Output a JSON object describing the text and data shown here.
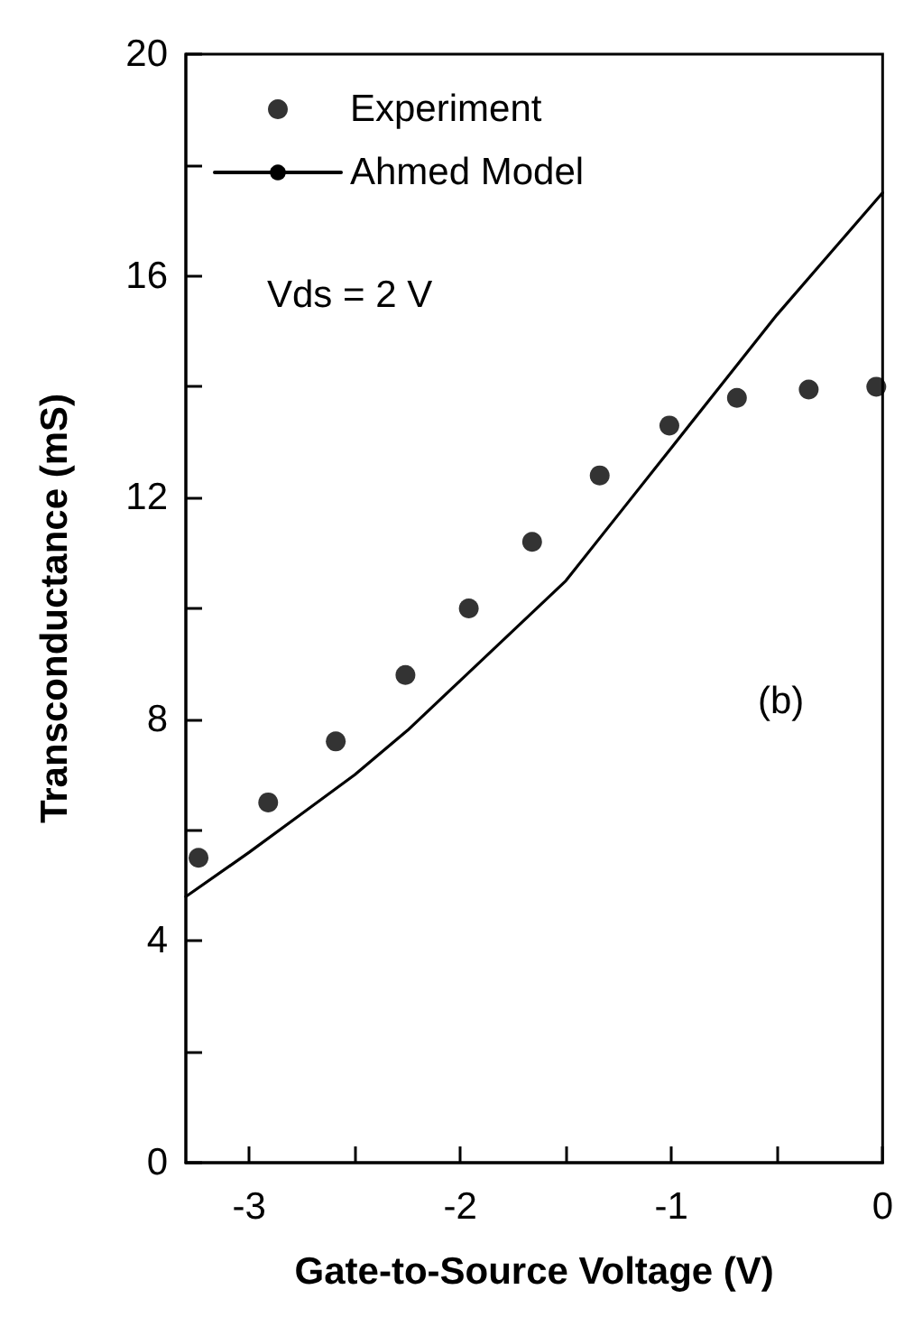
{
  "chart_data": {
    "type": "line",
    "xlabel": "Gate-to-Source Voltage (V)",
    "ylabel": "Transconductance (mS)",
    "xlim": [
      -3.3,
      0
    ],
    "xticks": [
      -3,
      {
        "value": -2.5,
        "label": null
      },
      -2,
      {
        "value": -1.5,
        "label": null
      },
      -1,
      {
        "value": -0.5,
        "label": null
      },
      0
    ],
    "ylim": [
      0,
      20
    ],
    "yticks": [
      0,
      {
        "value": 2,
        "label": null
      },
      4,
      {
        "value": 6,
        "label": null
      },
      8,
      {
        "value": 10,
        "label": null
      },
      12,
      {
        "value": 14,
        "label": null
      },
      16,
      {
        "value": 18,
        "label": null
      },
      20
    ],
    "grid": false,
    "legend": "top left",
    "annotations": [
      "Vds = 2 V",
      "(b)"
    ],
    "series": [
      {
        "name": "Experiment",
        "type": "scatter",
        "marker": "circle",
        "color": "#000000",
        "x": [
          -3.24,
          -2.91,
          -2.59,
          -2.26,
          -1.96,
          -1.66,
          -1.34,
          -1.01,
          -0.69,
          -0.35,
          -0.03
        ],
        "values": [
          5.5,
          6.5,
          7.6,
          8.8,
          10.0,
          11.2,
          12.4,
          13.3,
          13.8,
          13.95,
          14.0
        ]
      },
      {
        "name": "Ahmed Model",
        "marker": "none",
        "line_style": "solid",
        "color": "#000000",
        "x": [
          -3.3,
          -3.0,
          -2.75,
          -2.5,
          -2.25,
          -2.0,
          -1.75,
          -1.5,
          -1.25,
          -1.0,
          -0.75,
          -0.5,
          -0.25,
          0
        ],
        "values": [
          4.8,
          5.6,
          6.3,
          7.0,
          7.8,
          8.7,
          9.6,
          10.5,
          11.7,
          12.9,
          14.1,
          15.3,
          16.4,
          17.5
        ]
      }
    ]
  }
}
